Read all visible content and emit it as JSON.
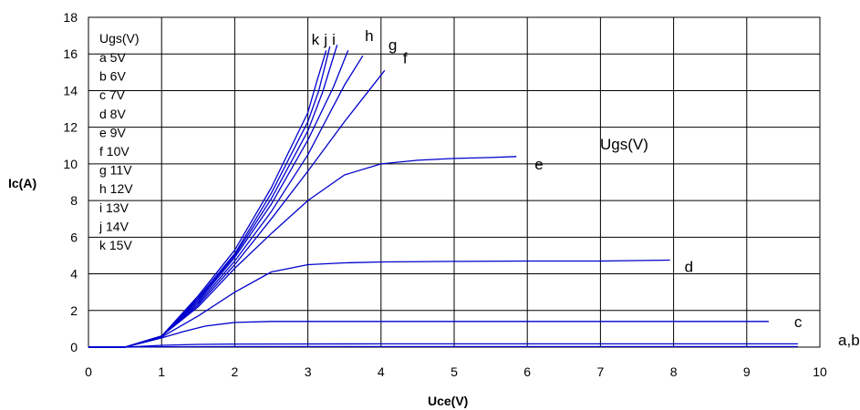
{
  "chart_data": {
    "type": "line",
    "title": "",
    "xlabel": "Uce(V)",
    "ylabel": "Ic(A)",
    "xlim": [
      0,
      10
    ],
    "ylim": [
      0,
      18
    ],
    "x_ticks": [
      "0",
      "1",
      "2",
      "3",
      "4",
      "5",
      "6",
      "7",
      "8",
      "9",
      "10"
    ],
    "y_ticks": [
      "0",
      "2",
      "4",
      "6",
      "8",
      "10",
      "12",
      "14",
      "16",
      "18"
    ],
    "grid": true,
    "line_color": "#0000cc",
    "legend": {
      "title": "Ugs(V)",
      "placement": "top-left",
      "entries": [
        "a  5V",
        "b  6V",
        "c  7V",
        "d  8V",
        "e  9V",
        "f  10V",
        "g 11V",
        "h 12V",
        "i  13V",
        "j  14V",
        "k 15V"
      ]
    },
    "annotation": "Ugs(V)",
    "series": [
      {
        "name": "a",
        "x": [
          0,
          0.5,
          1.0,
          2.0,
          4.0,
          6.0,
          8.0,
          9.7
        ],
        "y": [
          0,
          0,
          0.02,
          0.03,
          0.03,
          0.03,
          0.03,
          0.03
        ]
      },
      {
        "name": "b",
        "x": [
          0,
          0.5,
          1.0,
          1.5,
          2.0,
          4.0,
          6.0,
          8.0,
          9.7
        ],
        "y": [
          0,
          0,
          0.1,
          0.15,
          0.17,
          0.18,
          0.18,
          0.18,
          0.18
        ]
      },
      {
        "name": "c",
        "x": [
          0,
          0.5,
          0.8,
          1.0,
          1.3,
          1.6,
          2.0,
          2.5,
          4.0,
          6.0,
          8.0,
          9.3
        ],
        "y": [
          0,
          0,
          0.3,
          0.5,
          0.85,
          1.15,
          1.35,
          1.4,
          1.4,
          1.4,
          1.4,
          1.4
        ]
      },
      {
        "name": "d",
        "x": [
          0,
          0.5,
          1.0,
          1.5,
          2.0,
          2.5,
          3.0,
          3.5,
          4.0,
          5.0,
          6.0,
          7.0,
          7.95
        ],
        "y": [
          0,
          0,
          0.55,
          1.7,
          3.0,
          4.1,
          4.5,
          4.6,
          4.65,
          4.68,
          4.7,
          4.7,
          4.75
        ]
      },
      {
        "name": "e",
        "x": [
          0,
          0.5,
          1.0,
          1.5,
          2.0,
          2.5,
          3.0,
          3.5,
          4.0,
          4.5,
          5.0,
          5.5,
          5.85
        ],
        "y": [
          0,
          0,
          0.6,
          2.2,
          4.3,
          6.2,
          8.0,
          9.4,
          10.0,
          10.2,
          10.3,
          10.35,
          10.4
        ]
      },
      {
        "name": "f",
        "x": [
          0,
          0.5,
          1.0,
          1.5,
          2.0,
          2.5,
          3.0,
          3.5,
          4.05
        ],
        "y": [
          0,
          0,
          0.6,
          2.3,
          4.5,
          7.0,
          9.6,
          12.3,
          15.1
        ]
      },
      {
        "name": "g",
        "x": [
          0,
          0.5,
          1.0,
          1.5,
          2.0,
          2.5,
          3.0,
          3.5,
          3.75
        ],
        "y": [
          0,
          0,
          0.6,
          2.4,
          4.7,
          7.4,
          10.5,
          14.3,
          15.9
        ]
      },
      {
        "name": "h",
        "x": [
          0,
          0.5,
          1.0,
          1.5,
          2.0,
          2.5,
          3.0,
          3.35,
          3.55
        ],
        "y": [
          0,
          0,
          0.6,
          2.5,
          4.9,
          7.8,
          11.3,
          14.2,
          16.2
        ]
      },
      {
        "name": "i",
        "x": [
          0,
          0.5,
          1.0,
          1.5,
          2.0,
          2.5,
          3.0,
          3.2,
          3.4
        ],
        "y": [
          0,
          0,
          0.6,
          2.6,
          5.0,
          8.1,
          11.8,
          13.9,
          16.5
        ]
      },
      {
        "name": "j",
        "x": [
          0,
          0.5,
          1.0,
          1.5,
          2.0,
          2.5,
          3.0,
          3.15,
          3.3
        ],
        "y": [
          0,
          0,
          0.6,
          2.7,
          5.1,
          8.4,
          12.3,
          14.0,
          16.4
        ]
      },
      {
        "name": "k",
        "x": [
          0,
          0.5,
          1.0,
          1.5,
          2.0,
          2.5,
          3.0,
          3.1,
          3.25
        ],
        "y": [
          0,
          0,
          0.6,
          2.8,
          5.3,
          8.7,
          12.8,
          14.2,
          16.2
        ]
      }
    ],
    "curve_labels": [
      {
        "text": "k",
        "x": 3.05,
        "y": 16.5
      },
      {
        "text": "j",
        "x": 3.22,
        "y": 16.5
      },
      {
        "text": "i",
        "x": 3.33,
        "y": 16.5
      },
      {
        "text": "h",
        "x": 3.78,
        "y": 16.7
      },
      {
        "text": "g",
        "x": 4.1,
        "y": 16.2
      },
      {
        "text": "f",
        "x": 4.3,
        "y": 15.5
      },
      {
        "text": "e",
        "x": 6.1,
        "y": 9.7
      },
      {
        "text": "d",
        "x": 8.15,
        "y": 4.1
      },
      {
        "text": "c",
        "x": 9.65,
        "y": 1.1
      },
      {
        "text": "a,b",
        "x": 10.25,
        "y": 0.1
      }
    ]
  }
}
